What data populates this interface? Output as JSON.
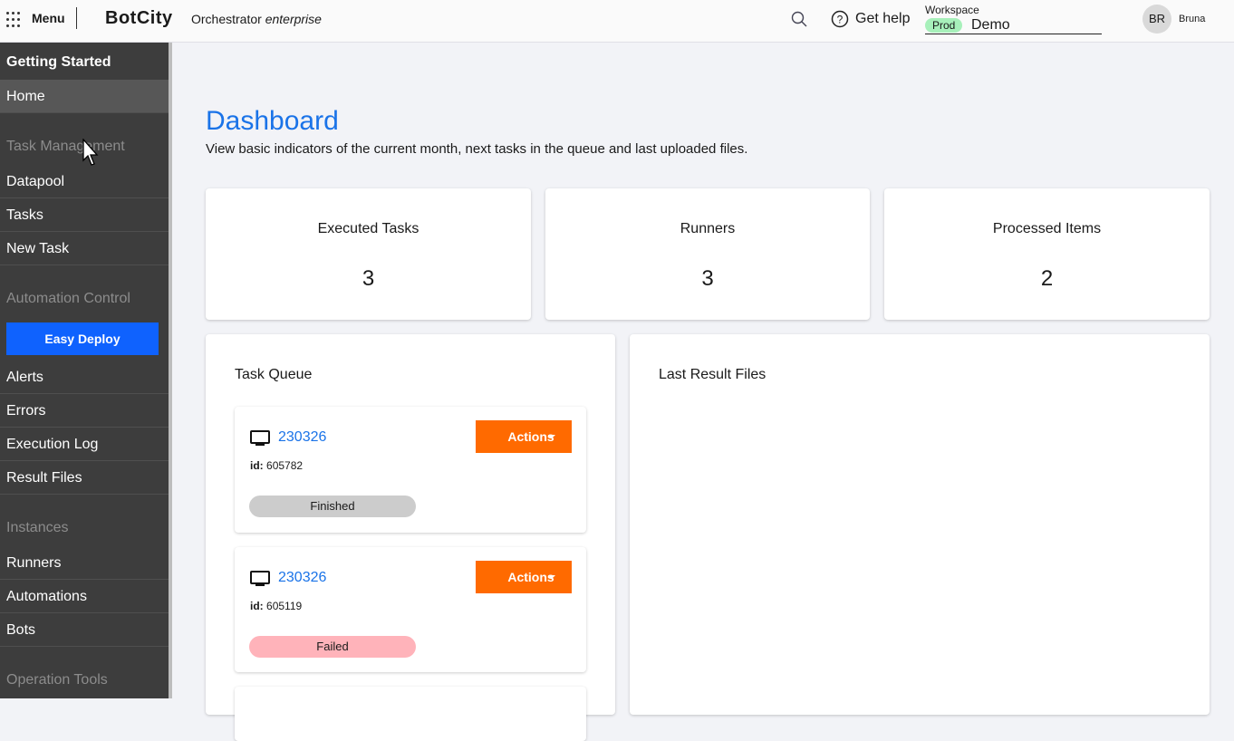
{
  "header": {
    "menu": "Menu",
    "logo": "BotCity",
    "product": "Orchestrator",
    "edition": "enterprise",
    "get_help": "Get help",
    "workspace_label": "Workspace",
    "workspace_env": "Prod",
    "workspace_name": "Demo",
    "avatar_initials": "BR",
    "user_name": "Bruna"
  },
  "sidebar": {
    "getting_started": "Getting Started",
    "home": "Home",
    "task_management": "Task Management",
    "datapool": "Datapool",
    "tasks": "Tasks",
    "new_task": "New Task",
    "automation_control": "Automation Control",
    "easy_deploy": "Easy Deploy",
    "alerts": "Alerts",
    "errors": "Errors",
    "execution_log": "Execution Log",
    "result_files": "Result Files",
    "instances": "Instances",
    "runners": "Runners",
    "automations": "Automations",
    "bots": "Bots",
    "operation_tools": "Operation Tools"
  },
  "main": {
    "title": "Dashboard",
    "subtitle": "View basic indicators of the current month, next tasks in the queue and last uploaded files.",
    "stats": [
      {
        "label": "Executed Tasks",
        "value": "3"
      },
      {
        "label": "Runners",
        "value": "3"
      },
      {
        "label": "Processed Items",
        "value": "2"
      }
    ],
    "task_queue_title": "Task Queue",
    "last_result_files_title": "Last Result Files",
    "tasks": [
      {
        "name": "230326",
        "id_label": "id:",
        "id": "605782",
        "status": "Finished",
        "status_color": "#cccccc",
        "actions": "Actions"
      },
      {
        "name": "230326",
        "id_label": "id:",
        "id": "605119",
        "status": "Failed",
        "status_color": "#ffb3ba",
        "actions": "Actions"
      }
    ]
  },
  "colors": {
    "accent": "#1a73e8",
    "actions": "#ff6a00",
    "easy_deploy": "#0f62fe",
    "prod_badge": "#a7f0ba"
  }
}
